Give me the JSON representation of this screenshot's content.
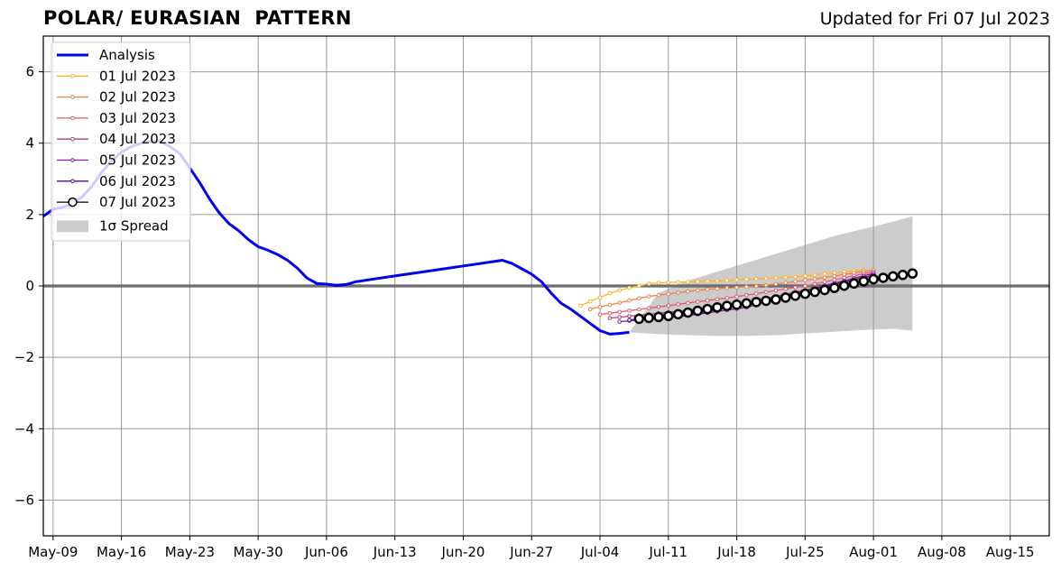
{
  "header": {
    "title": "POLAR/ EURASIAN  PATTERN",
    "updated": "Updated for Fri 07 Jul 2023"
  },
  "chart_data": {
    "type": "line",
    "title": "POLAR/ EURASIAN  PATTERN",
    "xlabel": "",
    "ylabel": "",
    "ylim": [
      -7,
      7
    ],
    "yticks": [
      -6,
      -4,
      -2,
      0,
      2,
      4,
      6
    ],
    "ytick_labels": [
      "−6",
      "−4",
      "−2",
      "0",
      "2",
      "4",
      "6"
    ],
    "xlim": [
      "2023-05-08",
      "2023-08-19"
    ],
    "xticks": [
      "2023-05-09",
      "2023-05-16",
      "2023-05-23",
      "2023-05-30",
      "2023-06-06",
      "2023-06-13",
      "2023-06-20",
      "2023-06-27",
      "2023-07-04",
      "2023-07-11",
      "2023-07-18",
      "2023-07-25",
      "2023-08-01",
      "2023-08-08",
      "2023-08-15"
    ],
    "xtick_labels": [
      "May-09",
      "May-16",
      "May-23",
      "May-30",
      "Jun-06",
      "Jun-13",
      "Jun-20",
      "Jun-27",
      "Jul-04",
      "Jul-11",
      "Jul-18",
      "Jul-25",
      "Aug-01",
      "Aug-08",
      "Aug-15"
    ],
    "grid": true,
    "legend_position": "top-left",
    "zero_line": true,
    "analysis": {
      "name": "Analysis",
      "color": "#0000ee",
      "points": [
        [
          "2023-05-08",
          1.95
        ],
        [
          "2023-05-09",
          2.15
        ],
        [
          "2023-05-10",
          2.2
        ],
        [
          "2023-05-11",
          2.3
        ],
        [
          "2023-05-12",
          2.5
        ],
        [
          "2023-05-13",
          2.8
        ],
        [
          "2023-05-14",
          3.2
        ],
        [
          "2023-05-15",
          3.5
        ],
        [
          "2023-05-16",
          3.75
        ],
        [
          "2023-05-17",
          3.9
        ],
        [
          "2023-05-18",
          4.0
        ],
        [
          "2023-05-19",
          4.05
        ],
        [
          "2023-05-20",
          4.05
        ],
        [
          "2023-05-21",
          3.9
        ],
        [
          "2023-05-22",
          3.7
        ],
        [
          "2023-05-23",
          3.3
        ],
        [
          "2023-05-24",
          2.9
        ],
        [
          "2023-05-25",
          2.45
        ],
        [
          "2023-05-26",
          2.05
        ],
        [
          "2023-05-27",
          1.75
        ],
        [
          "2023-05-28",
          1.55
        ],
        [
          "2023-05-29",
          1.3
        ],
        [
          "2023-05-30",
          1.1
        ],
        [
          "2023-05-31",
          1.0
        ],
        [
          "2023-06-01",
          0.88
        ],
        [
          "2023-06-02",
          0.72
        ],
        [
          "2023-06-03",
          0.5
        ],
        [
          "2023-06-04",
          0.22
        ],
        [
          "2023-06-05",
          0.07
        ],
        [
          "2023-06-06",
          0.05
        ],
        [
          "2023-06-07",
          0.02
        ],
        [
          "2023-06-08",
          0.04
        ],
        [
          "2023-06-09",
          0.12
        ],
        [
          "2023-06-13",
          0.28
        ],
        [
          "2023-06-17",
          0.44
        ],
        [
          "2023-06-21",
          0.6
        ],
        [
          "2023-06-24",
          0.72
        ],
        [
          "2023-06-25",
          0.63
        ],
        [
          "2023-06-26",
          0.48
        ],
        [
          "2023-06-27",
          0.33
        ],
        [
          "2023-06-28",
          0.12
        ],
        [
          "2023-06-29",
          -0.2
        ],
        [
          "2023-06-30",
          -0.48
        ],
        [
          "2023-07-01",
          -0.65
        ],
        [
          "2023-07-02",
          -0.85
        ],
        [
          "2023-07-03",
          -1.05
        ],
        [
          "2023-07-04",
          -1.25
        ],
        [
          "2023-07-05",
          -1.35
        ],
        [
          "2023-07-06",
          -1.33
        ],
        [
          "2023-07-07",
          -1.3
        ]
      ]
    },
    "spread": {
      "name": "1σ Spread",
      "color": "#cccccc",
      "dates": [
        "2023-07-07",
        "2023-07-10",
        "2023-07-13",
        "2023-07-16",
        "2023-07-19",
        "2023-07-22",
        "2023-07-25",
        "2023-07-28",
        "2023-07-31",
        "2023-08-03",
        "2023-08-05"
      ],
      "upper": [
        -1.3,
        -0.2,
        0.15,
        0.4,
        0.65,
        0.9,
        1.15,
        1.4,
        1.6,
        1.8,
        1.95
      ],
      "lower": [
        -1.3,
        -1.35,
        -1.38,
        -1.4,
        -1.4,
        -1.38,
        -1.33,
        -1.28,
        -1.23,
        -1.2,
        -1.25
      ]
    },
    "series": [
      {
        "name": "01 Jul 2023",
        "color": "#fcb42c",
        "start": "2023-07-02",
        "end": "2023-07-31",
        "anchors": [
          [
            0,
            -0.55
          ],
          [
            0.12,
            -0.15
          ],
          [
            0.25,
            0.08
          ],
          [
            0.5,
            0.15
          ],
          [
            0.75,
            0.25
          ],
          [
            1,
            0.45
          ]
        ]
      },
      {
        "name": "02 Jul 2023",
        "color": "#f0804a",
        "start": "2023-07-03",
        "end": "2023-08-01",
        "anchors": [
          [
            0,
            -0.65
          ],
          [
            0.2,
            -0.3
          ],
          [
            0.4,
            -0.1
          ],
          [
            0.6,
            0.0
          ],
          [
            0.8,
            0.2
          ],
          [
            1,
            0.45
          ]
        ]
      },
      {
        "name": "03 Jul 2023",
        "color": "#df5e6e",
        "start": "2023-07-04",
        "end": "2023-08-01",
        "anchors": [
          [
            0,
            -0.8
          ],
          [
            0.25,
            -0.55
          ],
          [
            0.5,
            -0.3
          ],
          [
            0.75,
            0.0
          ],
          [
            1,
            0.4
          ]
        ]
      },
      {
        "name": "04 Jul 2023",
        "color": "#b43a84",
        "start": "2023-07-05",
        "end": "2023-08-01",
        "anchors": [
          [
            0,
            -0.9
          ],
          [
            0.25,
            -0.72
          ],
          [
            0.5,
            -0.5
          ],
          [
            0.75,
            -0.1
          ],
          [
            1,
            0.35
          ]
        ]
      },
      {
        "name": "05 Jul 2023",
        "color": "#8c1ca8",
        "start": "2023-07-06",
        "end": "2023-08-01",
        "anchors": [
          [
            0,
            -1.0
          ],
          [
            0.25,
            -0.85
          ],
          [
            0.5,
            -0.6
          ],
          [
            0.75,
            -0.1
          ],
          [
            1,
            0.35
          ]
        ]
      },
      {
        "name": "06 Jul 2023",
        "color": "#4e0a8c",
        "start": "2023-07-07",
        "end": "2023-08-01",
        "anchors": [
          [
            0,
            -0.95
          ],
          [
            0.25,
            -0.8
          ],
          [
            0.5,
            -0.5
          ],
          [
            0.75,
            -0.1
          ],
          [
            1,
            0.3
          ]
        ]
      },
      {
        "name": "07 Jul 2023",
        "color": "#000000",
        "start": "2023-07-08",
        "end": "2023-08-05",
        "big_markers": true,
        "anchors": [
          [
            0,
            -0.92
          ],
          [
            0.1,
            -0.85
          ],
          [
            0.3,
            -0.58
          ],
          [
            0.5,
            -0.38
          ],
          [
            0.7,
            -0.08
          ],
          [
            0.85,
            0.18
          ],
          [
            1,
            0.35
          ]
        ]
      }
    ]
  }
}
